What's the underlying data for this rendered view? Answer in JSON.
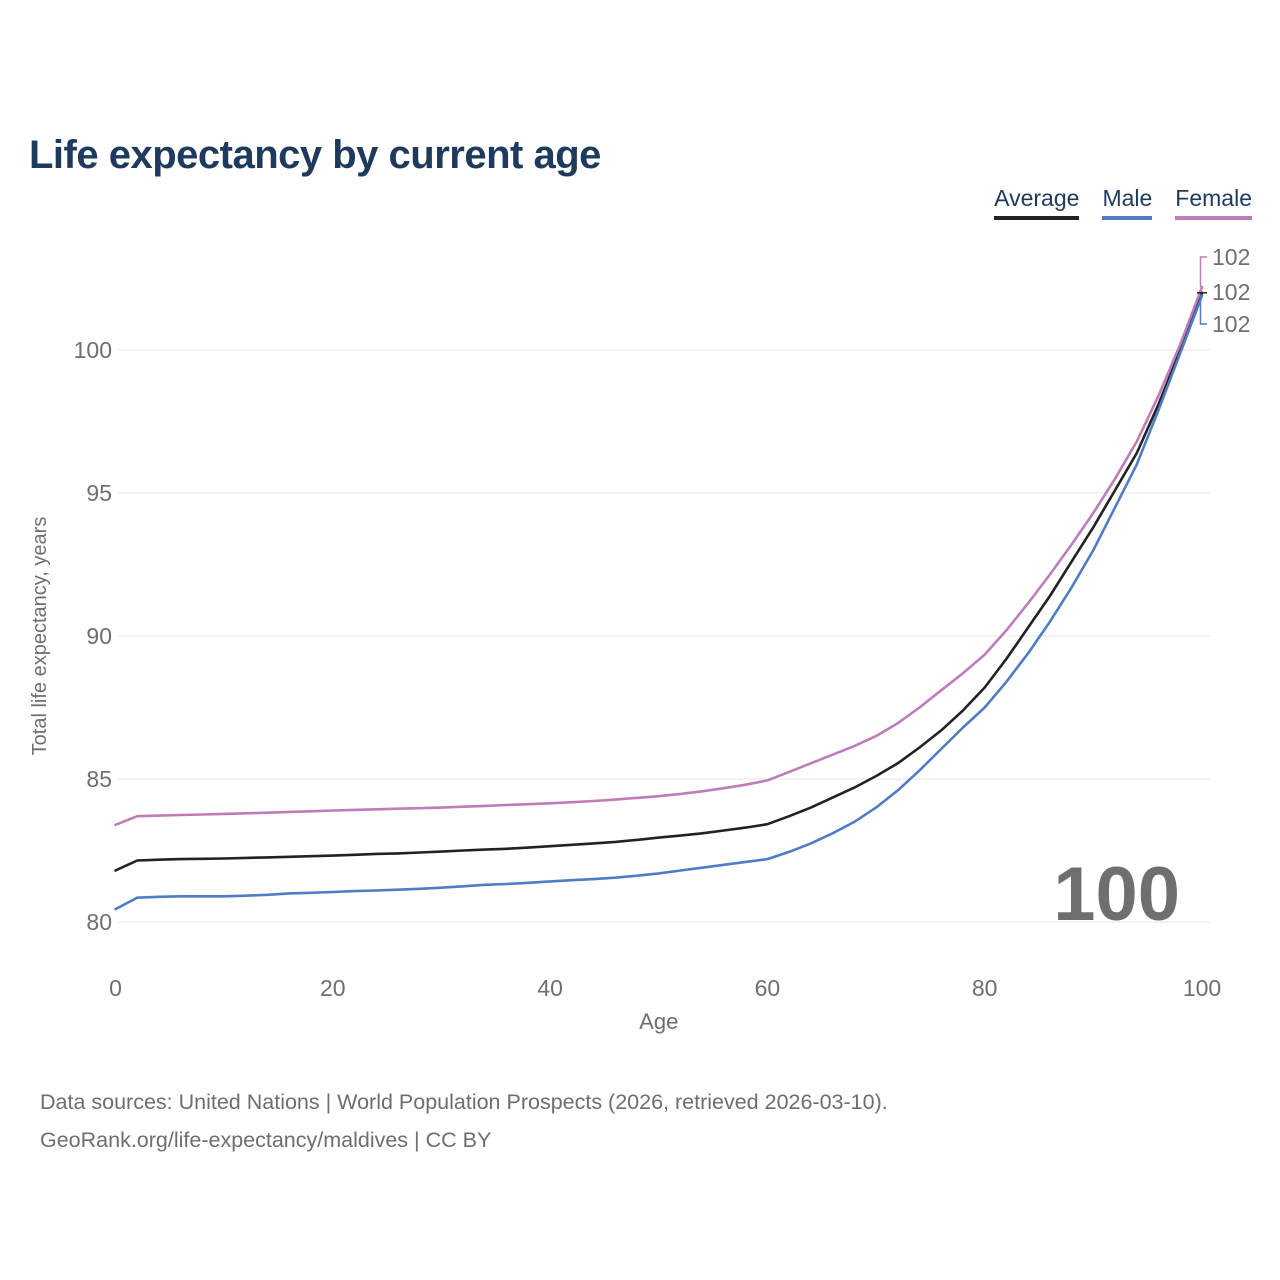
{
  "header": {
    "title": "Life expectancy by current age"
  },
  "legend": {
    "items": [
      {
        "label": "Average",
        "color": "#222222"
      },
      {
        "label": "Male",
        "color": "#4f7cc4"
      },
      {
        "label": "Female",
        "color": "#bf7cb9"
      }
    ]
  },
  "chart_data": {
    "type": "line",
    "title": "Life expectancy by current age",
    "xlabel": "Age",
    "ylabel": "Total life expectancy, years",
    "xlim": [
      0,
      100
    ],
    "ylim": [
      79.5,
      103.5
    ],
    "xticks": [
      0,
      20,
      40,
      60,
      80,
      100
    ],
    "yticks": [
      80,
      85,
      90,
      95,
      100
    ],
    "grid": "horizontal-only",
    "legend_position": "top-right",
    "watermark": "100",
    "x": [
      0,
      2,
      4,
      6,
      8,
      10,
      12,
      14,
      16,
      18,
      20,
      22,
      24,
      26,
      28,
      30,
      32,
      34,
      36,
      38,
      40,
      42,
      44,
      46,
      48,
      50,
      52,
      54,
      56,
      58,
      60,
      62,
      64,
      66,
      68,
      70,
      72,
      74,
      76,
      78,
      80,
      82,
      84,
      86,
      88,
      90,
      92,
      94,
      96,
      98,
      100
    ],
    "series": [
      {
        "name": "Average",
        "color": "#222222",
        "end_label": "102",
        "values": [
          81.8,
          82.15,
          82.18,
          82.2,
          82.21,
          82.22,
          82.24,
          82.26,
          82.28,
          82.3,
          82.32,
          82.35,
          82.38,
          82.4,
          82.43,
          82.46,
          82.5,
          82.53,
          82.56,
          82.6,
          82.65,
          82.7,
          82.75,
          82.8,
          82.87,
          82.95,
          83.02,
          83.1,
          83.2,
          83.3,
          83.42,
          83.7,
          84.0,
          84.35,
          84.7,
          85.1,
          85.55,
          86.1,
          86.7,
          87.4,
          88.2,
          89.2,
          90.3,
          91.4,
          92.6,
          93.8,
          95.1,
          96.4,
          98.1,
          100.0,
          102.0
        ]
      },
      {
        "name": "Male",
        "color": "#4f7cc4",
        "end_label": "102",
        "values": [
          80.45,
          80.85,
          80.88,
          80.9,
          80.9,
          80.9,
          80.92,
          80.95,
          81.0,
          81.02,
          81.05,
          81.08,
          81.1,
          81.13,
          81.16,
          81.2,
          81.25,
          81.3,
          81.33,
          81.37,
          81.42,
          81.46,
          81.5,
          81.55,
          81.62,
          81.7,
          81.8,
          81.9,
          82.0,
          82.1,
          82.2,
          82.45,
          82.75,
          83.1,
          83.5,
          84.0,
          84.6,
          85.3,
          86.05,
          86.8,
          87.5,
          88.4,
          89.4,
          90.5,
          91.7,
          93.0,
          94.5,
          96.0,
          97.9,
          99.9,
          101.9
        ]
      },
      {
        "name": "Female",
        "color": "#bf7cb9",
        "end_label": "102",
        "values": [
          83.4,
          83.7,
          83.72,
          83.74,
          83.76,
          83.78,
          83.8,
          83.82,
          83.85,
          83.87,
          83.9,
          83.92,
          83.94,
          83.96,
          83.98,
          84.0,
          84.03,
          84.06,
          84.09,
          84.12,
          84.15,
          84.19,
          84.23,
          84.28,
          84.34,
          84.4,
          84.48,
          84.57,
          84.68,
          84.8,
          84.95,
          85.25,
          85.55,
          85.85,
          86.15,
          86.5,
          86.95,
          87.5,
          88.1,
          88.7,
          89.35,
          90.2,
          91.15,
          92.15,
          93.2,
          94.3,
          95.5,
          96.8,
          98.4,
          100.2,
          102.2
        ]
      }
    ]
  },
  "footer": {
    "line1": "Data sources: United Nations | World Population Prospects (2026, retrieved 2026-03-10).",
    "line2": "GeoRank.org/life-expectancy/maldives | CC BY"
  }
}
